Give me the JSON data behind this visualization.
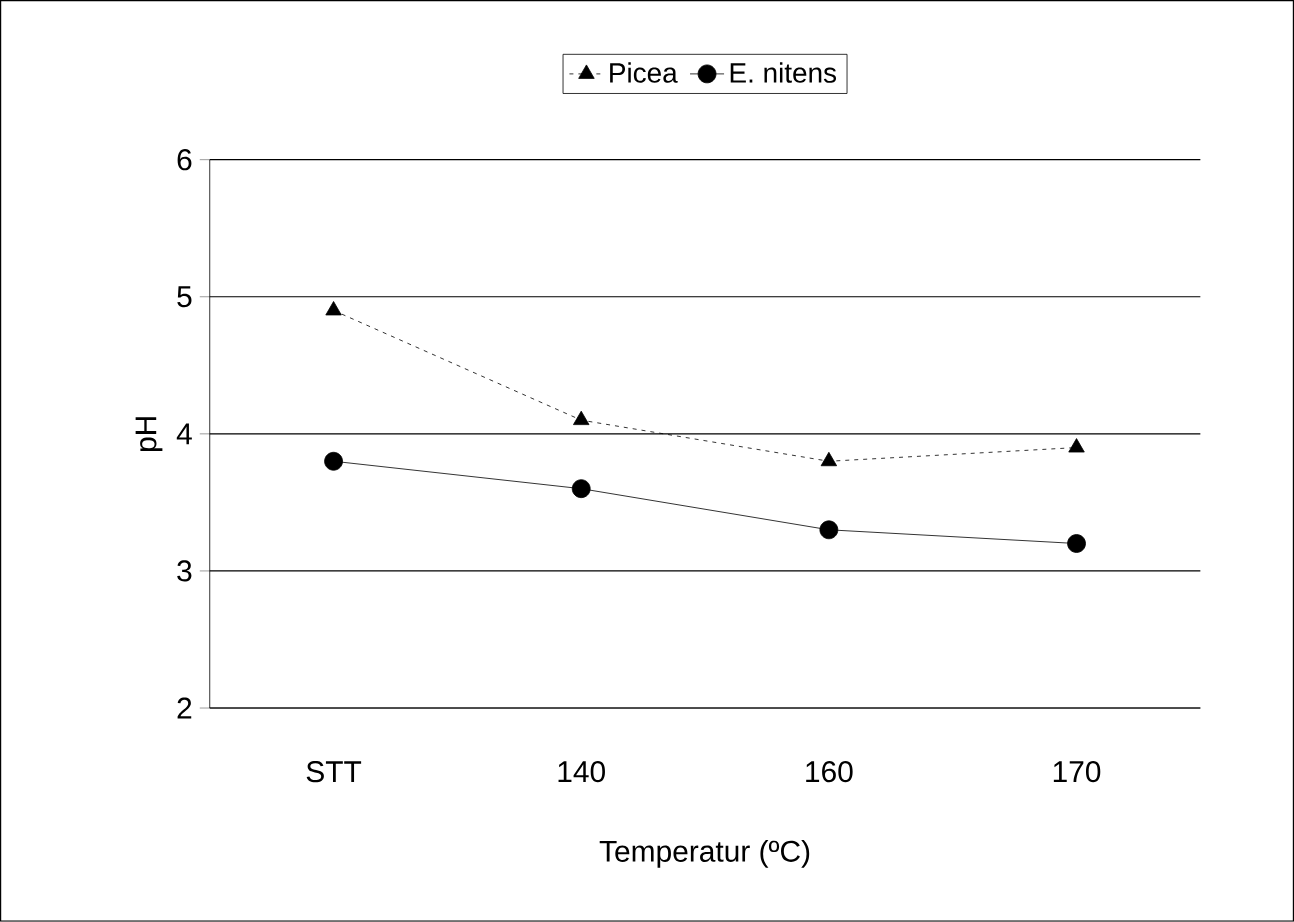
{
  "chart_data": {
    "type": "line",
    "xlabel": "Temperatur (ºC)",
    "ylabel": "pH",
    "categories": [
      "STT",
      "140",
      "160",
      "170"
    ],
    "series": [
      {
        "name": "Picea",
        "color": "#000000",
        "marker": "triangle",
        "line_style": "dotted",
        "values": [
          4.9,
          4.1,
          3.8,
          3.9
        ]
      },
      {
        "name": "E. nitens",
        "color": "#000000",
        "marker": "circle",
        "line_style": "solid",
        "values": [
          3.8,
          3.6,
          3.3,
          3.2
        ]
      }
    ],
    "ylim": [
      2,
      6
    ],
    "yticks": [
      2,
      3,
      4,
      5,
      6
    ],
    "grid": "y",
    "legend": "top"
  }
}
